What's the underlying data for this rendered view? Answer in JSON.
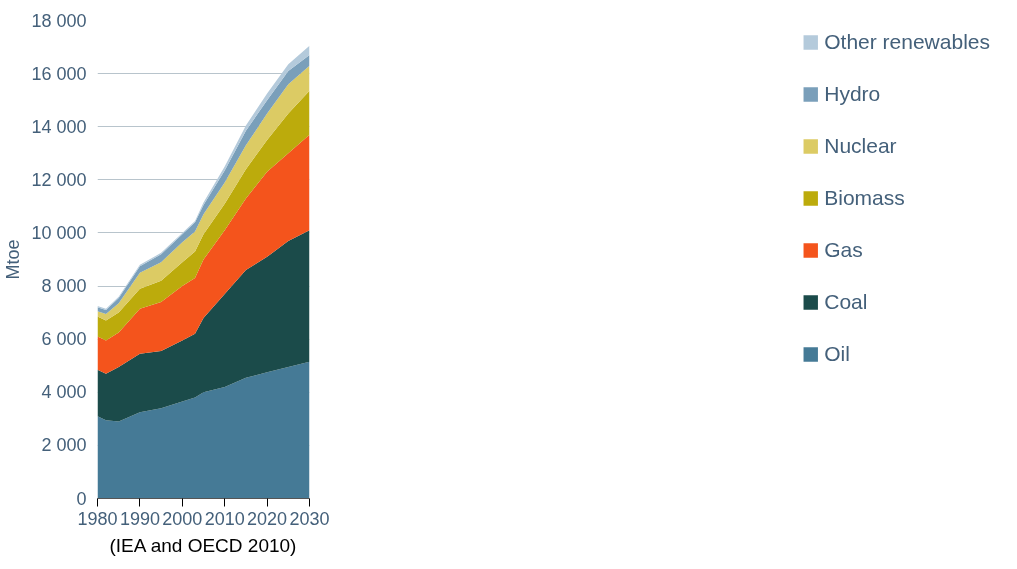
{
  "chart_data": {
    "type": "area",
    "stacked": true,
    "ylabel": "Mtoe",
    "annotations": [
      "(IEA and OECD 2010)"
    ],
    "x": [
      1980,
      1982,
      1985,
      1990,
      1995,
      2000,
      2003,
      2005,
      2010,
      2015,
      2020,
      2025,
      2030
    ],
    "series": [
      {
        "name": "Oil",
        "color": "#457a96",
        "values": [
          3100,
          2950,
          2900,
          3250,
          3400,
          3650,
          3800,
          4000,
          4200,
          4550,
          4750,
          4950,
          5150
        ]
      },
      {
        "name": "Coal",
        "color": "#1b4b4a",
        "values": [
          1750,
          1750,
          2050,
          2200,
          2150,
          2300,
          2400,
          2800,
          3500,
          4050,
          4350,
          4750,
          4950
        ]
      },
      {
        "name": "Gas",
        "color": "#f4541c",
        "values": [
          1250,
          1250,
          1300,
          1700,
          1850,
          2050,
          2100,
          2200,
          2400,
          2700,
          3200,
          3300,
          3600
        ]
      },
      {
        "name": "Biomass",
        "color": "#bcab0c",
        "values": [
          750,
          750,
          750,
          750,
          800,
          900,
          1000,
          950,
          1000,
          1100,
          1200,
          1500,
          1650
        ]
      },
      {
        "name": "Nuclear",
        "color": "#dccb64",
        "values": [
          200,
          250,
          350,
          600,
          700,
          750,
          750,
          750,
          800,
          900,
          1000,
          1100,
          950
        ]
      },
      {
        "name": "Hydro",
        "color": "#7a9fba",
        "values": [
          150,
          150,
          200,
          250,
          300,
          300,
          350,
          350,
          450,
          550,
          500,
          500,
          400
        ]
      },
      {
        "name": "Other renewables",
        "color": "#b4cadb",
        "values": [
          50,
          50,
          50,
          50,
          50,
          50,
          50,
          100,
          150,
          200,
          250,
          250,
          350
        ]
      }
    ],
    "xlim": [
      1980,
      2030
    ],
    "xticks": [
      1980,
      1990,
      2000,
      2010,
      2020,
      2030
    ],
    "ylim": [
      0,
      18000
    ],
    "yticks": [
      0,
      {
        "value": 2000,
        "label": "2 000"
      },
      {
        "value": 4000,
        "label": "4 000"
      },
      {
        "value": 6000,
        "label": "6 000"
      },
      {
        "value": 8000,
        "label": "8 000"
      },
      {
        "value": 10000,
        "label": "10 000"
      },
      {
        "value": 12000,
        "label": "12 000"
      },
      {
        "value": 14000,
        "label": "14 000"
      },
      {
        "value": 16000,
        "label": "16 000"
      },
      {
        "value": 18000,
        "label": "18 000"
      }
    ],
    "grid": "y",
    "legend": "right"
  }
}
